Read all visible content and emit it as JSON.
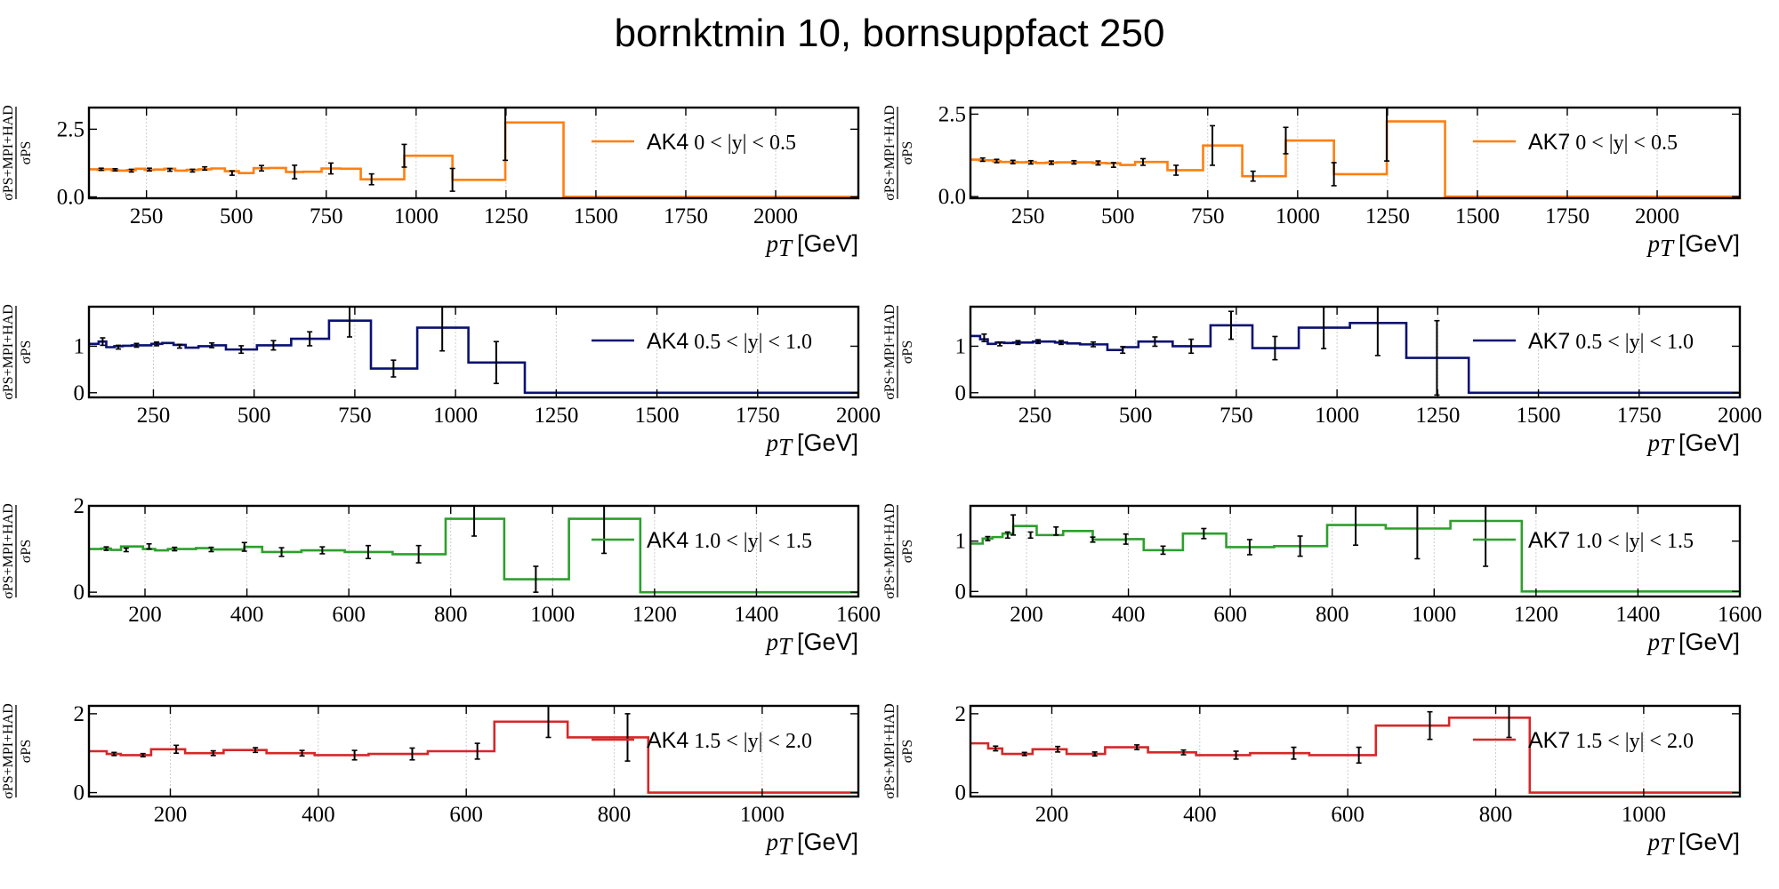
{
  "figure": {
    "title": "bornktmin 10, bornsuppfact 250"
  },
  "chart_data": [
    {
      "type": "line",
      "step": true,
      "algo": "AK4",
      "range": "0 < |y| < 0.5",
      "color": "#ff7f0e",
      "xlabel_var": "p_T",
      "xlabel_unit": "[GeV]",
      "ylabel_num": "σPS+MPI+HAD",
      "ylabel_den": "σPS",
      "xlim": [
        90,
        2230
      ],
      "ylim": [
        -0.05,
        3.3
      ],
      "xticks": [
        250,
        500,
        750,
        1000,
        1250,
        1500,
        1750,
        2000
      ],
      "yticks": [
        0.0,
        2.5
      ],
      "ytick_labels": [
        "0.0",
        "2.5"
      ],
      "edges": [
        90,
        114,
        133,
        153,
        174,
        196,
        220,
        245,
        272,
        300,
        330,
        362,
        395,
        430,
        468,
        507,
        548,
        592,
        638,
        686,
        737,
        790,
        846,
        905,
        967,
        1032,
        1101,
        1172,
        1248,
        1327,
        1410,
        1497,
        1588,
        1684,
        1784,
        1890,
        2000,
        2116,
        2238
      ],
      "values": [
        1.02,
        1.0,
        1.02,
        0.98,
        0.97,
        0.99,
        1.04,
        1.0,
        1.01,
        1.04,
        0.97,
        1.0,
        1.02,
        1.05,
        0.95,
        0.88,
        1.06,
        1.07,
        0.92,
        0.93,
        1.05,
        1.04,
        0.65,
        0.65,
        1.52,
        1.52,
        0.63,
        0.63,
        2.75,
        2.75,
        0.0,
        0.0,
        0.0,
        0.0,
        0.0,
        0.0,
        0.0,
        0.0
      ],
      "points": [
        [
          124,
          1.02,
          0.04
        ],
        [
          163,
          1.0,
          0.04
        ],
        [
          208,
          0.97,
          0.05
        ],
        [
          258,
          1.01,
          0.05
        ],
        [
          315,
          1.0,
          0.05
        ],
        [
          378,
          0.97,
          0.05
        ],
        [
          412,
          1.05,
          0.06
        ],
        [
          488,
          0.88,
          0.08
        ],
        [
          570,
          1.06,
          0.1
        ],
        [
          662,
          0.92,
          0.25
        ],
        [
          763,
          1.05,
          0.2
        ],
        [
          876,
          0.65,
          0.2
        ],
        [
          967,
          1.52,
          0.42
        ],
        [
          1101,
          0.63,
          0.42
        ],
        [
          1248,
          2.75,
          1.4
        ]
      ]
    },
    {
      "type": "line",
      "step": true,
      "algo": "AK7",
      "range": "0 < |y| < 0.5",
      "color": "#ff7f0e",
      "xlabel_var": "p_T",
      "xlabel_unit": "[GeV]",
      "ylabel_num": "σPS+MPI+HAD",
      "ylabel_den": "σPS",
      "xlim": [
        90,
        2230
      ],
      "ylim": [
        -0.05,
        2.7
      ],
      "xticks": [
        250,
        500,
        750,
        1000,
        1250,
        1500,
        1750,
        2000
      ],
      "yticks": [
        0.0,
        2.5
      ],
      "ytick_labels": [
        "0.0",
        "2.5"
      ],
      "edges": [
        90,
        114,
        133,
        153,
        174,
        196,
        220,
        245,
        272,
        300,
        330,
        362,
        395,
        430,
        468,
        507,
        548,
        592,
        638,
        686,
        737,
        790,
        846,
        905,
        967,
        1032,
        1101,
        1172,
        1248,
        1327,
        1410,
        1497,
        1588,
        1684,
        1784,
        1890,
        2000,
        2116,
        2238
      ],
      "values": [
        1.12,
        1.1,
        1.1,
        1.07,
        1.05,
        1.05,
        1.04,
        1.05,
        1.02,
        1.03,
        1.04,
        1.04,
        1.04,
        1.02,
        1.01,
        0.96,
        1.05,
        1.05,
        0.8,
        0.8,
        1.55,
        1.55,
        0.62,
        0.62,
        1.7,
        1.7,
        0.68,
        0.68,
        2.28,
        2.28,
        0.0,
        0.0,
        0.0,
        0.0,
        0.0,
        0.0,
        0.0,
        0.0
      ],
      "points": [
        [
          124,
          1.12,
          0.05
        ],
        [
          163,
          1.08,
          0.05
        ],
        [
          208,
          1.05,
          0.05
        ],
        [
          258,
          1.04,
          0.05
        ],
        [
          315,
          1.03,
          0.05
        ],
        [
          378,
          1.04,
          0.05
        ],
        [
          445,
          1.02,
          0.06
        ],
        [
          488,
          0.96,
          0.07
        ],
        [
          570,
          1.05,
          0.1
        ],
        [
          662,
          0.8,
          0.15
        ],
        [
          763,
          1.55,
          0.6
        ],
        [
          876,
          0.62,
          0.15
        ],
        [
          967,
          1.7,
          0.4
        ],
        [
          1101,
          0.68,
          0.35
        ],
        [
          1248,
          2.28,
          1.2
        ]
      ]
    },
    {
      "type": "line",
      "step": true,
      "algo": "AK4",
      "range": "0.5 < |y| < 1.0",
      "color": "#0a1172",
      "xlabel_var": "p_T",
      "xlabel_unit": "[GeV]",
      "ylabel_num": "σPS+MPI+HAD",
      "ylabel_den": "σPS",
      "xlim": [
        90,
        2000
      ],
      "ylim": [
        -0.1,
        1.85
      ],
      "xticks": [
        250,
        500,
        750,
        1000,
        1250,
        1500,
        1750,
        2000
      ],
      "yticks": [
        0,
        1
      ],
      "ytick_labels": [
        "0",
        "1"
      ],
      "edges": [
        90,
        114,
        133,
        153,
        174,
        196,
        220,
        245,
        272,
        300,
        330,
        362,
        395,
        430,
        468,
        507,
        548,
        592,
        638,
        686,
        737,
        790,
        846,
        905,
        967,
        1032,
        1101,
        1172,
        1248,
        1327,
        1410,
        1497,
        1588,
        1684,
        1784,
        1890,
        2000
      ],
      "values": [
        1.05,
        1.1,
        0.98,
        1.0,
        1.01,
        1.02,
        1.02,
        1.05,
        1.07,
        1.03,
        0.97,
        1.0,
        1.02,
        0.93,
        0.93,
        1.02,
        1.02,
        1.16,
        1.16,
        1.55,
        1.55,
        0.52,
        0.52,
        1.4,
        1.4,
        0.65,
        0.65,
        0.0,
        0.0,
        0.0,
        0.0,
        0.0,
        0.0,
        0.0,
        0.0,
        0.0
      ],
      "points": [
        [
          124,
          1.1,
          0.08
        ],
        [
          163,
          0.98,
          0.04
        ],
        [
          208,
          1.02,
          0.04
        ],
        [
          258,
          1.05,
          0.04
        ],
        [
          315,
          1.0,
          0.04
        ],
        [
          395,
          1.02,
          0.05
        ],
        [
          468,
          0.93,
          0.08
        ],
        [
          548,
          1.02,
          0.1
        ],
        [
          638,
          1.16,
          0.15
        ],
        [
          737,
          1.55,
          0.35
        ],
        [
          846,
          0.52,
          0.18
        ],
        [
          967,
          1.4,
          0.5
        ],
        [
          1101,
          0.65,
          0.45
        ]
      ]
    },
    {
      "type": "line",
      "step": true,
      "algo": "AK7",
      "range": "0.5 < |y| < 1.0",
      "color": "#0a1172",
      "xlabel_var": "p_T",
      "xlabel_unit": "[GeV]",
      "ylabel_num": "σPS+MPI+HAD",
      "ylabel_den": "σPS",
      "xlim": [
        90,
        2000
      ],
      "ylim": [
        -0.1,
        1.85
      ],
      "xticks": [
        250,
        500,
        750,
        1000,
        1250,
        1500,
        1750,
        2000
      ],
      "yticks": [
        0,
        1
      ],
      "ytick_labels": [
        "0",
        "1"
      ],
      "edges": [
        90,
        114,
        133,
        153,
        174,
        196,
        220,
        245,
        272,
        300,
        330,
        362,
        395,
        430,
        468,
        507,
        548,
        592,
        638,
        686,
        737,
        790,
        846,
        905,
        967,
        1032,
        1101,
        1172,
        1248,
        1327,
        1410,
        1497,
        1588,
        1684,
        1784,
        1890,
        2000
      ],
      "values": [
        1.22,
        1.15,
        1.05,
        1.08,
        1.07,
        1.08,
        1.08,
        1.1,
        1.1,
        1.08,
        1.06,
        1.04,
        1.04,
        0.92,
        0.98,
        1.1,
        1.1,
        1.0,
        1.0,
        1.45,
        1.45,
        0.96,
        0.96,
        1.4,
        1.4,
        1.5,
        1.5,
        0.75,
        0.75,
        0.0,
        0.0,
        0.0,
        0.0,
        0.0,
        0.0,
        0.0
      ],
      "points": [
        [
          124,
          1.18,
          0.08
        ],
        [
          163,
          1.05,
          0.04
        ],
        [
          208,
          1.08,
          0.04
        ],
        [
          258,
          1.1,
          0.04
        ],
        [
          315,
          1.08,
          0.04
        ],
        [
          395,
          1.04,
          0.05
        ],
        [
          468,
          0.92,
          0.07
        ],
        [
          548,
          1.1,
          0.1
        ],
        [
          638,
          1.0,
          0.15
        ],
        [
          737,
          1.45,
          0.3
        ],
        [
          846,
          0.96,
          0.25
        ],
        [
          967,
          1.4,
          0.45
        ],
        [
          1101,
          1.5,
          0.7
        ],
        [
          1248,
          0.75,
          0.8
        ]
      ]
    },
    {
      "type": "line",
      "step": true,
      "algo": "AK4",
      "range": "1.0 < |y| < 1.5",
      "color": "#2ca02c",
      "xlabel_var": "p_T",
      "xlabel_unit": "[GeV]",
      "ylabel_num": "σPS+MPI+HAD",
      "ylabel_den": "σPS",
      "xlim": [
        90,
        1600
      ],
      "ylim": [
        -0.1,
        2.0
      ],
      "xticks": [
        200,
        400,
        600,
        800,
        1000,
        1200,
        1400,
        1600
      ],
      "yticks": [
        0,
        2
      ],
      "ytick_labels": [
        "0",
        "2"
      ],
      "edges": [
        90,
        114,
        133,
        153,
        174,
        196,
        220,
        245,
        272,
        300,
        330,
        362,
        395,
        430,
        468,
        507,
        548,
        592,
        638,
        686,
        737,
        790,
        846,
        905,
        967,
        1032,
        1101,
        1172,
        1248,
        1327,
        1410,
        1497,
        1588,
        1684
      ],
      "values": [
        1.0,
        1.01,
        0.98,
        1.06,
        1.06,
        1.0,
        0.97,
        1.0,
        1.0,
        1.02,
        0.99,
        0.99,
        1.05,
        0.93,
        0.93,
        0.97,
        0.97,
        0.93,
        0.93,
        0.88,
        0.88,
        1.7,
        1.7,
        0.3,
        0.3,
        1.7,
        1.7,
        0.0,
        0.0,
        0.0,
        0.0,
        0.0,
        0.0
      ],
      "points": [
        [
          124,
          1.01,
          0.04
        ],
        [
          163,
          0.98,
          0.04
        ],
        [
          208,
          1.06,
          0.06
        ],
        [
          258,
          1.0,
          0.04
        ],
        [
          330,
          0.99,
          0.05
        ],
        [
          395,
          1.05,
          0.1
        ],
        [
          468,
          0.93,
          0.1
        ],
        [
          548,
          0.97,
          0.08
        ],
        [
          638,
          0.93,
          0.15
        ],
        [
          737,
          0.88,
          0.2
        ],
        [
          846,
          1.7,
          0.4
        ],
        [
          967,
          0.3,
          0.3
        ],
        [
          1101,
          1.7,
          0.8
        ]
      ]
    },
    {
      "type": "line",
      "step": true,
      "algo": "AK7",
      "range": "1.0 < |y| < 1.5",
      "color": "#2ca02c",
      "xlabel_var": "p_T",
      "xlabel_unit": "[GeV]",
      "ylabel_num": "σPS+MPI+HAD",
      "ylabel_den": "σPS",
      "xlim": [
        90,
        1600
      ],
      "ylim": [
        -0.1,
        1.7
      ],
      "xticks": [
        200,
        400,
        600,
        800,
        1000,
        1200,
        1400,
        1600
      ],
      "yticks": [
        0,
        1
      ],
      "ytick_labels": [
        "0",
        "1"
      ],
      "edges": [
        90,
        114,
        133,
        153,
        174,
        196,
        220,
        245,
        272,
        300,
        330,
        362,
        395,
        430,
        468,
        507,
        548,
        592,
        638,
        686,
        737,
        790,
        846,
        905,
        967,
        1032,
        1101,
        1172,
        1248,
        1327,
        1410,
        1497,
        1588,
        1684
      ],
      "values": [
        0.95,
        1.05,
        1.08,
        1.15,
        1.3,
        1.3,
        1.12,
        1.12,
        1.2,
        1.2,
        1.03,
        1.03,
        1.04,
        0.82,
        0.82,
        1.15,
        1.15,
        0.88,
        0.88,
        0.9,
        0.9,
        1.32,
        1.32,
        1.25,
        1.25,
        1.4,
        1.4,
        0.0,
        0.0,
        0.0,
        0.0,
        0.0,
        0.0
      ],
      "points": [
        [
          124,
          1.05,
          0.04
        ],
        [
          163,
          1.12,
          0.06
        ],
        [
          174,
          1.32,
          0.2
        ],
        [
          208,
          1.12,
          0.06
        ],
        [
          258,
          1.2,
          0.08
        ],
        [
          330,
          1.03,
          0.05
        ],
        [
          395,
          1.04,
          0.1
        ],
        [
          468,
          0.82,
          0.08
        ],
        [
          548,
          1.15,
          0.1
        ],
        [
          638,
          0.88,
          0.15
        ],
        [
          737,
          0.9,
          0.2
        ],
        [
          846,
          1.32,
          0.4
        ],
        [
          967,
          1.25,
          0.6
        ],
        [
          1101,
          1.4,
          0.9
        ]
      ]
    },
    {
      "type": "line",
      "step": true,
      "algo": "AK4",
      "range": "1.5 < |y| < 2.0",
      "color": "#d62728",
      "xlabel_var": "p_T",
      "xlabel_unit": "[GeV]",
      "ylabel_num": "σPS+MPI+HAD",
      "ylabel_den": "σPS",
      "xlim": [
        90,
        1130
      ],
      "ylim": [
        -0.1,
        2.2
      ],
      "xticks": [
        200,
        400,
        600,
        800,
        1000
      ],
      "yticks": [
        0,
        2
      ],
      "ytick_labels": [
        "0",
        "2"
      ],
      "edges": [
        90,
        114,
        133,
        153,
        174,
        196,
        220,
        245,
        272,
        300,
        330,
        362,
        395,
        430,
        468,
        507,
        548,
        592,
        638,
        686,
        737,
        790,
        846,
        905,
        967,
        1032,
        1101,
        1172
      ],
      "values": [
        1.05,
        0.98,
        0.95,
        0.95,
        1.1,
        1.1,
        1.0,
        1.0,
        1.08,
        1.08,
        1.0,
        1.0,
        0.95,
        0.95,
        0.98,
        0.98,
        1.05,
        1.05,
        1.8,
        1.8,
        1.4,
        1.4,
        0.0,
        0.0,
        0.0,
        0.0,
        0.0
      ],
      "points": [
        [
          124,
          0.98,
          0.04
        ],
        [
          163,
          0.95,
          0.04
        ],
        [
          208,
          1.1,
          0.1
        ],
        [
          258,
          1.0,
          0.06
        ],
        [
          315,
          1.08,
          0.06
        ],
        [
          378,
          1.0,
          0.07
        ],
        [
          449,
          0.95,
          0.12
        ],
        [
          527,
          0.98,
          0.15
        ],
        [
          615,
          1.05,
          0.2
        ],
        [
          711,
          1.8,
          0.4
        ],
        [
          818,
          1.4,
          0.6
        ]
      ]
    },
    {
      "type": "line",
      "step": true,
      "algo": "AK7",
      "range": "1.5 < |y| < 2.0",
      "color": "#d62728",
      "xlabel_var": "p_T",
      "xlabel_unit": "[GeV]",
      "ylabel_num": "σPS+MPI+HAD",
      "ylabel_den": "σPS",
      "xlim": [
        90,
        1130
      ],
      "ylim": [
        -0.1,
        2.2
      ],
      "xticks": [
        200,
        400,
        600,
        800,
        1000
      ],
      "yticks": [
        0,
        2
      ],
      "ytick_labels": [
        "0",
        "2"
      ],
      "edges": [
        90,
        114,
        133,
        153,
        174,
        196,
        220,
        245,
        272,
        300,
        330,
        362,
        395,
        430,
        468,
        507,
        548,
        592,
        638,
        686,
        737,
        790,
        846,
        905,
        967,
        1032,
        1101,
        1172
      ],
      "values": [
        1.25,
        1.12,
        0.98,
        0.98,
        1.1,
        1.1,
        0.98,
        0.98,
        1.15,
        1.15,
        1.02,
        1.02,
        0.95,
        0.95,
        1.0,
        1.0,
        0.95,
        0.95,
        1.7,
        1.7,
        1.9,
        1.9,
        0.0,
        0.0,
        0.0,
        0.0,
        0.0
      ],
      "points": [
        [
          124,
          1.12,
          0.06
        ],
        [
          163,
          0.98,
          0.04
        ],
        [
          208,
          1.1,
          0.07
        ],
        [
          258,
          0.98,
          0.05
        ],
        [
          315,
          1.15,
          0.06
        ],
        [
          378,
          1.02,
          0.06
        ],
        [
          449,
          0.95,
          0.1
        ],
        [
          527,
          1.0,
          0.15
        ],
        [
          615,
          0.95,
          0.2
        ],
        [
          711,
          1.7,
          0.35
        ],
        [
          818,
          1.9,
          0.5
        ]
      ]
    }
  ]
}
